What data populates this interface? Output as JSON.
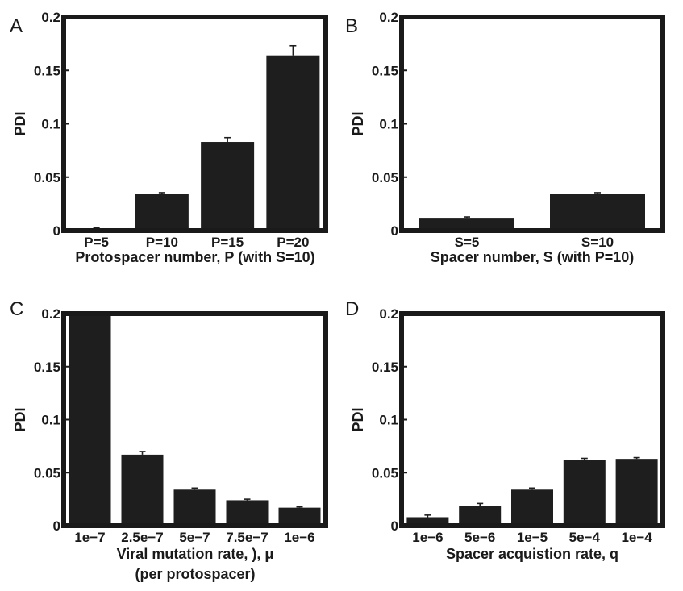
{
  "chart_data": [
    {
      "type": "bar",
      "panel": "A",
      "ylabel": "PDI",
      "xlabel": [
        "Protospacer number, P (with S=10)"
      ],
      "ylim": [
        0,
        0.2
      ],
      "yticks": [
        "0",
        "0.05",
        "0.1",
        "0.15",
        "0.2"
      ],
      "categories": [
        "P=5",
        "P=10",
        "P=15",
        "P=20"
      ],
      "values": [
        0.002,
        0.034,
        0.083,
        0.164
      ],
      "errors": [
        0.0005,
        0.0015,
        0.004,
        0.009
      ],
      "bar_color": "#1e1e1e"
    },
    {
      "type": "bar",
      "panel": "B",
      "ylabel": "PDI",
      "xlabel": [
        "Spacer number, S (with P=10)"
      ],
      "ylim": [
        0,
        0.2
      ],
      "yticks": [
        "0",
        "0.05",
        "0.1",
        "0.15",
        "0.2"
      ],
      "categories": [
        "S=5",
        "S=10"
      ],
      "values": [
        0.012,
        0.034
      ],
      "errors": [
        0.0008,
        0.0015
      ],
      "bar_color": "#1e1e1e"
    },
    {
      "type": "bar",
      "panel": "C",
      "ylabel": "PDI",
      "xlabel": [
        "Viral mutation rate, ), μ",
        "(per protospacer)"
      ],
      "ylim": [
        0,
        0.2
      ],
      "yticks": [
        "0",
        "0.05",
        "0.1",
        "0.15",
        "0.2"
      ],
      "categories": [
        "1e−7",
        "2.5e−7",
        "5e−7",
        "7.5e−7",
        "1e−6"
      ],
      "values": [
        0.2,
        0.067,
        0.034,
        0.024,
        0.017
      ],
      "errors": [
        0,
        0.003,
        0.0015,
        0.001,
        0.0008
      ],
      "bar_color": "#1e1e1e"
    },
    {
      "type": "bar",
      "panel": "D",
      "ylabel": "PDI",
      "xlabel": [
        "Spacer acquistion rate, q"
      ],
      "ylim": [
        0,
        0.2
      ],
      "yticks": [
        "0",
        "0.05",
        "0.1",
        "0.15",
        "0.2"
      ],
      "categories": [
        "1e−6",
        "5e−6",
        "1e−5",
        "5e−4",
        "1e−4"
      ],
      "values": [
        0.008,
        0.019,
        0.034,
        0.062,
        0.063
      ],
      "errors": [
        0.002,
        0.002,
        0.0015,
        0.0015,
        0.0012
      ],
      "bar_color": "#1e1e1e"
    }
  ]
}
